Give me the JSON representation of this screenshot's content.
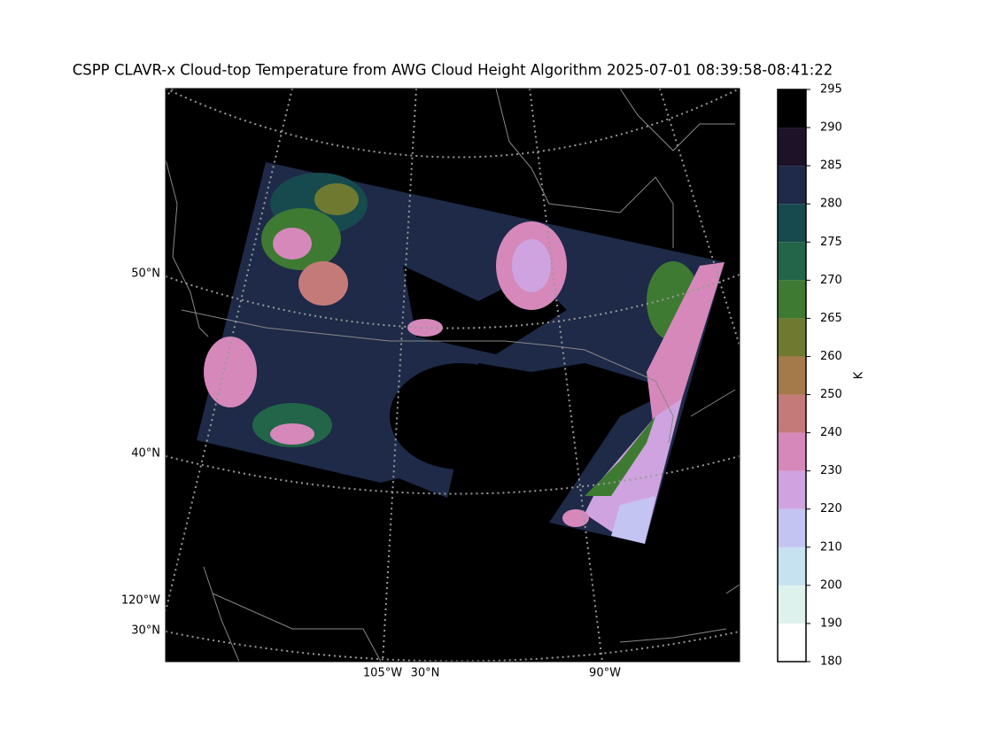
{
  "title": "CSPP CLAVR-x Cloud-top Temperature from AWG Cloud Height Algorithm 2025-07-01 08:39:58-08:41:22",
  "map": {
    "left_labels": [
      "50°N",
      "40°N",
      "120°W",
      "30°N"
    ],
    "bottom_labels": [
      "105°W",
      "30°N",
      "90°W"
    ]
  },
  "colorbar": {
    "label": "K",
    "boundaries": [
      180,
      190,
      200,
      210,
      220,
      230,
      240,
      250,
      260,
      265,
      270,
      275,
      280,
      285,
      290,
      295
    ],
    "colors": [
      "#ffffff",
      "#ddf2ec",
      "#c6e2f0",
      "#c4c4f2",
      "#cfa3e0",
      "#d688bb",
      "#c57a7a",
      "#a57a4a",
      "#6f7a30",
      "#3f7a33",
      "#226548",
      "#174a4e",
      "#1e2a48",
      "#1e1228",
      "#000000"
    ]
  }
}
